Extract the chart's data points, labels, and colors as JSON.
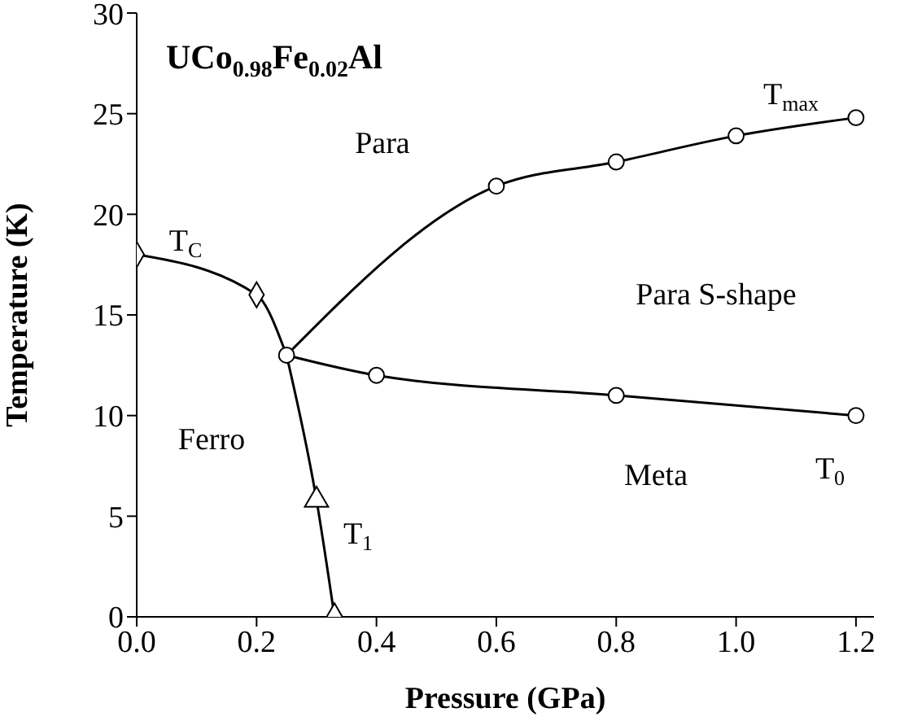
{
  "chart_data": {
    "type": "line",
    "title": "UCo$_{0.98}$Fe$_{0.02}$Al",
    "xlabel": "Pressure (GPa)",
    "ylabel": "Temperature (K)",
    "xlim": [
      0,
      1.23
    ],
    "xticks": [
      {
        "value": 0,
        "label": "0.0"
      },
      0.2,
      0.4,
      0.6,
      0.8,
      {
        "value": 1,
        "label": "1.0"
      },
      1.2
    ],
    "ylim": [
      0,
      30
    ],
    "yticks": [
      0,
      5,
      10,
      15,
      20,
      25,
      30
    ],
    "line_style": "solid",
    "series": [
      {
        "color": "#000000",
        "marker": "diamond",
        "x": [
          0,
          0.2,
          0.25
        ],
        "values": [
          18,
          16,
          13
        ]
      },
      {
        "color": "#000000",
        "marker": "triangle",
        "x": [
          0.25,
          0.3,
          0.33
        ],
        "values": [
          13,
          5.8,
          0
        ]
      },
      {
        "color": "#000000",
        "marker": "circle",
        "x": [
          0.25,
          0.6,
          0.8,
          1.0,
          1.2
        ],
        "values": [
          13,
          21.4,
          22.6,
          23.9,
          24.8
        ]
      },
      {
        "color": "#000000",
        "marker": "circle",
        "x": [
          0.25,
          0.4,
          0.8,
          1.2
        ],
        "values": [
          13,
          12,
          11,
          10
        ]
      }
    ],
    "annotations": [
      "Para",
      "Para S-shape",
      "Ferro",
      "Meta",
      "T$_{C}$",
      "T$_{1}$",
      "T$_{max}$",
      "T$_{0}$"
    ]
  }
}
